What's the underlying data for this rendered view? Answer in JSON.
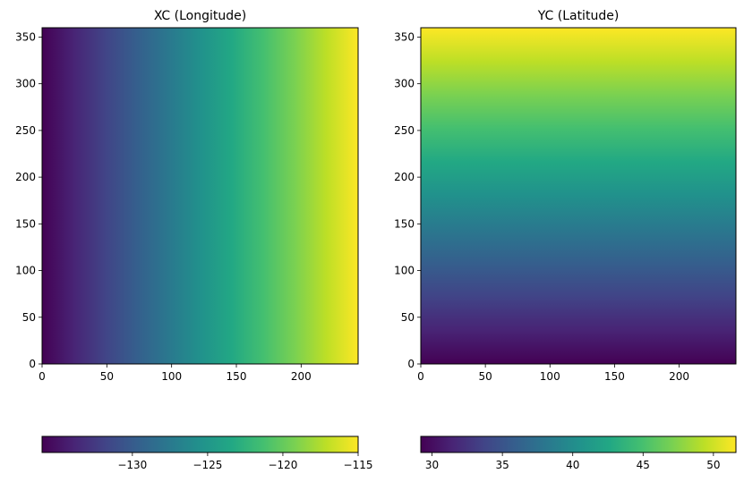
{
  "chart_data": [
    {
      "type": "heatmap",
      "title": "XC (Longitude)",
      "xlabel": "",
      "ylabel": "",
      "varies_along": "x",
      "colormap": "viridis",
      "xlim": [
        0,
        244
      ],
      "ylim": [
        0,
        360
      ],
      "x_ticks": [
        0,
        50,
        100,
        150,
        200
      ],
      "y_ticks": [
        0,
        50,
        100,
        150,
        200,
        250,
        300,
        350
      ],
      "value_range": [
        -136,
        -115
      ],
      "colorbar": {
        "orientation": "horizontal",
        "ticks": [
          -130,
          -125,
          -120,
          -115
        ],
        "tick_labels": [
          "−130",
          "−125",
          "−120",
          "−115"
        ]
      }
    },
    {
      "type": "heatmap",
      "title": "YC (Latitude)",
      "xlabel": "",
      "ylabel": "",
      "varies_along": "y",
      "colormap": "viridis",
      "xlim": [
        0,
        244
      ],
      "ylim": [
        0,
        360
      ],
      "x_ticks": [
        0,
        50,
        100,
        150,
        200
      ],
      "y_ticks": [
        0,
        50,
        100,
        150,
        200,
        250,
        300,
        350
      ],
      "value_range": [
        29.2,
        51.6
      ],
      "colorbar": {
        "orientation": "horizontal",
        "ticks": [
          30,
          35,
          40,
          45,
          50
        ],
        "tick_labels": [
          "30",
          "35",
          "40",
          "45",
          "50"
        ]
      }
    }
  ]
}
